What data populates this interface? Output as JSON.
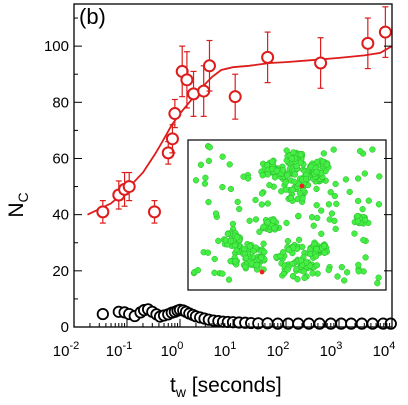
{
  "chart_data": {
    "type": "scatter",
    "panel_label": "(b)",
    "xlabel": {
      "main": "t",
      "sub": "w",
      "rest": " [seconds]"
    },
    "ylabel": {
      "main": "N",
      "sub": "C"
    },
    "xscale": "log",
    "xlim": [
      0.01,
      10000
    ],
    "ylim": [
      0,
      115
    ],
    "x_ticks": [
      {
        "value": 0.01,
        "base": "10",
        "exp": "-2"
      },
      {
        "value": 0.1,
        "base": "10",
        "exp": "-1"
      },
      {
        "value": 1,
        "base": "10",
        "exp": "0"
      },
      {
        "value": 10,
        "base": "10",
        "exp": "1"
      },
      {
        "value": 100,
        "base": "10",
        "exp": "2"
      },
      {
        "value": 1000,
        "base": "10",
        "exp": "3"
      },
      {
        "value": 10000,
        "base": "10",
        "exp": "4"
      }
    ],
    "y_ticks": [
      0,
      20,
      40,
      60,
      80,
      100
    ],
    "grid": false,
    "legend": "none",
    "series": [
      {
        "color": "#dd1c1c",
        "marker": "open-circle",
        "points": [
          {
            "x": 0.035,
            "y": 41,
            "err": 4
          },
          {
            "x": 0.07,
            "y": 47,
            "err": 5
          },
          {
            "x": 0.09,
            "y": 49,
            "err": 6
          },
          {
            "x": 0.11,
            "y": 50,
            "err": 5
          },
          {
            "x": 0.33,
            "y": 41,
            "err": 4
          },
          {
            "x": 0.6,
            "y": 62,
            "err": 4
          },
          {
            "x": 0.72,
            "y": 67,
            "err": 5
          },
          {
            "x": 0.8,
            "y": 76,
            "err": 5
          },
          {
            "x": 1.1,
            "y": 91,
            "err": 9
          },
          {
            "x": 1.35,
            "y": 88,
            "err": 10
          },
          {
            "x": 1.8,
            "y": 83,
            "err": 8
          },
          {
            "x": 2.8,
            "y": 84,
            "err": 9
          },
          {
            "x": 3.6,
            "y": 93,
            "err": 9
          },
          {
            "x": 11,
            "y": 82,
            "err": 8
          },
          {
            "x": 45,
            "y": 96,
            "err": 9
          },
          {
            "x": 450,
            "y": 94,
            "err": 9
          },
          {
            "x": 3500,
            "y": 101,
            "err": 9
          },
          {
            "x": 7500,
            "y": 105,
            "err": 9
          }
        ],
        "fit_curve": [
          [
            0.018,
            40
          ],
          [
            0.05,
            44
          ],
          [
            0.1,
            49
          ],
          [
            0.2,
            55
          ],
          [
            0.35,
            62
          ],
          [
            0.5,
            67
          ],
          [
            0.7,
            72
          ],
          [
            1,
            76
          ],
          [
            1.5,
            80
          ],
          [
            2.5,
            85
          ],
          [
            4,
            89
          ],
          [
            6,
            91.5
          ],
          [
            10,
            92.5
          ],
          [
            20,
            93
          ],
          [
            50,
            94
          ],
          [
            100,
            94.3
          ],
          [
            300,
            95
          ],
          [
            1000,
            95.8
          ],
          [
            3000,
            96.7
          ],
          [
            6000,
            97.6
          ],
          [
            10000,
            100
          ]
        ]
      },
      {
        "color": "#000000",
        "marker": "open-circle",
        "points": [
          [
            0.035,
            4.6
          ],
          [
            0.07,
            5.4
          ],
          [
            0.09,
            5.2
          ],
          [
            0.11,
            4.6
          ],
          [
            0.14,
            3.9
          ],
          [
            0.18,
            5.2
          ],
          [
            0.21,
            6.0
          ],
          [
            0.25,
            6.3
          ],
          [
            0.3,
            5.4
          ],
          [
            0.36,
            4.5
          ],
          [
            0.42,
            3.7
          ],
          [
            0.5,
            4.1
          ],
          [
            0.6,
            4.5
          ],
          [
            0.7,
            5.1
          ],
          [
            0.8,
            5.4
          ],
          [
            0.9,
            5.8
          ],
          [
            1.0,
            6.1
          ],
          [
            1.15,
            5.9
          ],
          [
            1.3,
            5.4
          ],
          [
            1.5,
            4.8
          ],
          [
            1.75,
            4.3
          ],
          [
            2.0,
            3.8
          ],
          [
            2.4,
            3.4
          ],
          [
            2.9,
            3.0
          ],
          [
            3.5,
            2.6
          ],
          [
            4.3,
            2.3
          ],
          [
            5.3,
            2.1
          ],
          [
            6.5,
            1.9
          ],
          [
            8,
            1.8
          ],
          [
            10,
            1.7
          ],
          [
            13,
            1.6
          ],
          [
            17,
            1.5
          ],
          [
            22,
            1.4
          ],
          [
            30,
            1.3
          ],
          [
            45,
            1.3
          ],
          [
            70,
            1.2
          ],
          [
            110,
            1.2
          ],
          [
            170,
            1.2
          ],
          [
            270,
            1.2
          ],
          [
            430,
            1.2
          ],
          [
            700,
            1.2
          ],
          [
            1100,
            1.2
          ],
          [
            1700,
            1.2
          ],
          [
            2700,
            1.2
          ],
          [
            4300,
            1.2
          ],
          [
            6800,
            1.2
          ],
          [
            9500,
            1.2
          ]
        ]
      }
    ]
  },
  "inset": {
    "green": "#44ee44",
    "green_edge": "#2ab82a",
    "red": "#ee2222"
  }
}
